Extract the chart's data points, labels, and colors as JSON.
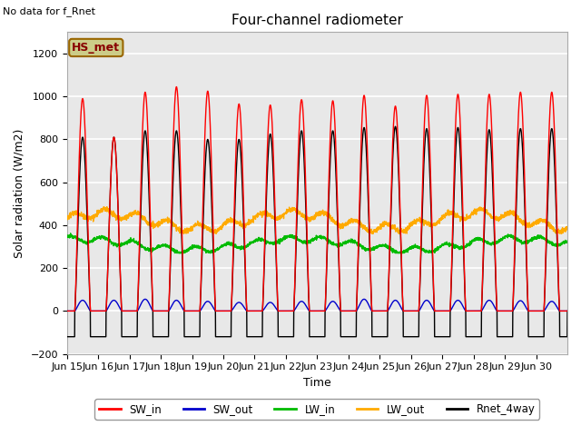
{
  "title": "Four-channel radiometer",
  "top_left_text": "No data for f_Rnet",
  "ylabel": "Solar radiation (W/m2)",
  "xlabel": "Time",
  "legend_label": "HS_met",
  "ylim": [
    -200,
    1300
  ],
  "yticks": [
    -200,
    0,
    200,
    400,
    600,
    800,
    1000,
    1200
  ],
  "xtick_labels": [
    "Jun 15",
    "Jun 16",
    "Jun 17",
    "Jun 18",
    "Jun 19",
    "Jun 20",
    "Jun 21",
    "Jun 22",
    "Jun 23",
    "Jun 24",
    "Jun 25",
    "Jun 26",
    "Jun 27",
    "Jun 28",
    "Jun 29",
    "Jun 30"
  ],
  "colors": {
    "SW_in": "#ff0000",
    "SW_out": "#0000cc",
    "LW_in": "#00bb00",
    "LW_out": "#ffaa00",
    "Rnet_4way": "#000000"
  },
  "fig_bg": "#ffffff",
  "axes_bg": "#e8e8e8",
  "grid_color": "#ffffff",
  "hs_met_face": "#cccc88",
  "hs_met_edge": "#996600",
  "hs_met_text": "#880000",
  "num_days": 16,
  "SW_in_peaks": [
    990,
    810,
    1020,
    1045,
    1025,
    965,
    960,
    985,
    980,
    1005,
    955,
    1005,
    1010,
    1010,
    1020,
    1020
  ],
  "SW_out_peaks": [
    50,
    50,
    55,
    50,
    45,
    40,
    40,
    45,
    45,
    55,
    50,
    50,
    50,
    50,
    48,
    45
  ],
  "Rnet_peaks": [
    810,
    810,
    840,
    840,
    800,
    800,
    825,
    840,
    840,
    855,
    860,
    850,
    855,
    845,
    850,
    850
  ],
  "Rnet_trough": -120,
  "LW_in_base": 310,
  "LW_out_base": 420
}
